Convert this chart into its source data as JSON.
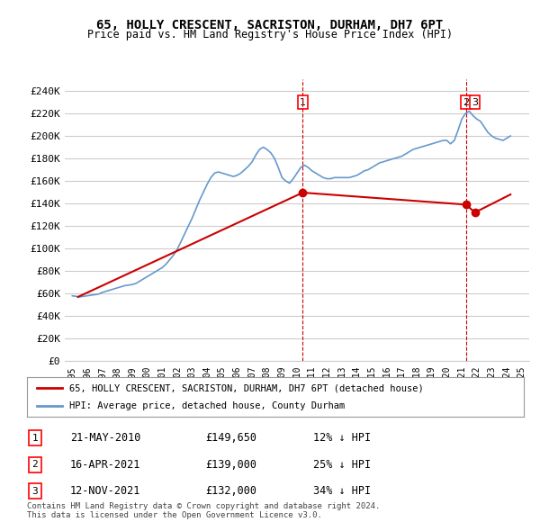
{
  "title": "65, HOLLY CRESCENT, SACRISTON, DURHAM, DH7 6PT",
  "subtitle": "Price paid vs. HM Land Registry's House Price Index (HPI)",
  "ylabel_ticks": [
    "£0",
    "£20K",
    "£40K",
    "£60K",
    "£80K",
    "£100K",
    "£120K",
    "£140K",
    "£160K",
    "£180K",
    "£200K",
    "£220K",
    "£240K"
  ],
  "ytick_values": [
    0,
    20000,
    40000,
    60000,
    80000,
    100000,
    120000,
    140000,
    160000,
    180000,
    200000,
    220000,
    240000
  ],
  "ylim": [
    0,
    250000
  ],
  "legend_line1": "65, HOLLY CRESCENT, SACRISTON, DURHAM, DH7 6PT (detached house)",
  "legend_line2": "HPI: Average price, detached house, County Durham",
  "table_rows": [
    {
      "num": "1",
      "date": "21-MAY-2010",
      "price": "£149,650",
      "pct": "12% ↓ HPI"
    },
    {
      "num": "2",
      "date": "16-APR-2021",
      "price": "£139,000",
      "pct": "25% ↓ HPI"
    },
    {
      "num": "3",
      "date": "12-NOV-2021",
      "price": "£132,000",
      "pct": "34% ↓ HPI"
    }
  ],
  "footer": "Contains HM Land Registry data © Crown copyright and database right 2024.\nThis data is licensed under the Open Government Licence v3.0.",
  "sale_color": "#cc0000",
  "hpi_color": "#6699cc",
  "vline_color": "#cc0000",
  "bg_color": "#ffffff",
  "grid_color": "#cccccc",
  "hpi_data": {
    "dates": [
      1995.0,
      1995.25,
      1995.5,
      1995.75,
      1996.0,
      1996.25,
      1996.5,
      1996.75,
      1997.0,
      1997.25,
      1997.5,
      1997.75,
      1998.0,
      1998.25,
      1998.5,
      1998.75,
      1999.0,
      1999.25,
      1999.5,
      1999.75,
      2000.0,
      2000.25,
      2000.5,
      2000.75,
      2001.0,
      2001.25,
      2001.5,
      2001.75,
      2002.0,
      2002.25,
      2002.5,
      2002.75,
      2003.0,
      2003.25,
      2003.5,
      2003.75,
      2004.0,
      2004.25,
      2004.5,
      2004.75,
      2005.0,
      2005.25,
      2005.5,
      2005.75,
      2006.0,
      2006.25,
      2006.5,
      2006.75,
      2007.0,
      2007.25,
      2007.5,
      2007.75,
      2008.0,
      2008.25,
      2008.5,
      2008.75,
      2009.0,
      2009.25,
      2009.5,
      2009.75,
      2010.0,
      2010.25,
      2010.5,
      2010.75,
      2011.0,
      2011.25,
      2011.5,
      2011.75,
      2012.0,
      2012.25,
      2012.5,
      2012.75,
      2013.0,
      2013.25,
      2013.5,
      2013.75,
      2014.0,
      2014.25,
      2014.5,
      2014.75,
      2015.0,
      2015.25,
      2015.5,
      2015.75,
      2016.0,
      2016.25,
      2016.5,
      2016.75,
      2017.0,
      2017.25,
      2017.5,
      2017.75,
      2018.0,
      2018.25,
      2018.5,
      2018.75,
      2019.0,
      2019.25,
      2019.5,
      2019.75,
      2020.0,
      2020.25,
      2020.5,
      2020.75,
      2021.0,
      2021.25,
      2021.5,
      2021.75,
      2022.0,
      2022.25,
      2022.5,
      2022.75,
      2023.0,
      2023.25,
      2023.5,
      2023.75,
      2024.0,
      2024.25
    ],
    "values": [
      58000,
      57500,
      57000,
      57500,
      58000,
      58500,
      59000,
      59500,
      61000,
      62000,
      63000,
      64000,
      65000,
      66000,
      67000,
      67500,
      68000,
      69000,
      71000,
      73000,
      75000,
      77000,
      79000,
      81000,
      83000,
      86000,
      90000,
      94000,
      99000,
      106000,
      113000,
      120000,
      127000,
      135000,
      143000,
      150000,
      157000,
      163000,
      167000,
      168000,
      167000,
      166000,
      165000,
      164000,
      165000,
      167000,
      170000,
      173000,
      177000,
      183000,
      188000,
      190000,
      188000,
      185000,
      180000,
      172000,
      163000,
      160000,
      158000,
      162000,
      167000,
      172000,
      174000,
      172000,
      169000,
      167000,
      165000,
      163000,
      162000,
      162000,
      163000,
      163000,
      163000,
      163000,
      163000,
      164000,
      165000,
      167000,
      169000,
      170000,
      172000,
      174000,
      176000,
      177000,
      178000,
      179000,
      180000,
      181000,
      182000,
      184000,
      186000,
      188000,
      189000,
      190000,
      191000,
      192000,
      193000,
      194000,
      195000,
      196000,
      196000,
      193000,
      196000,
      205000,
      215000,
      220000,
      222000,
      218000,
      215000,
      213000,
      208000,
      203000,
      200000,
      198000,
      197000,
      196000,
      198000,
      200000
    ]
  },
  "sold_data": {
    "dates": [
      1995.38,
      2010.38,
      2021.29,
      2021.87
    ],
    "values": [
      57000,
      149650,
      139000,
      132000
    ]
  },
  "vline_dates": [
    2010.38,
    2021.29
  ],
  "marker_dates": [
    2010.38,
    2021.29,
    2021.87
  ],
  "marker_values": [
    149650,
    139000,
    132000
  ],
  "sale_line_segments": [
    {
      "x": [
        1995.38,
        2010.38
      ],
      "y": [
        57000,
        149650
      ]
    },
    {
      "x": [
        2010.38,
        2021.29
      ],
      "y": [
        149650,
        139000
      ]
    },
    {
      "x": [
        2021.29,
        2021.87
      ],
      "y": [
        139000,
        132000
      ]
    },
    {
      "x": [
        2021.87,
        2024.25
      ],
      "y": [
        132000,
        148000
      ]
    }
  ]
}
